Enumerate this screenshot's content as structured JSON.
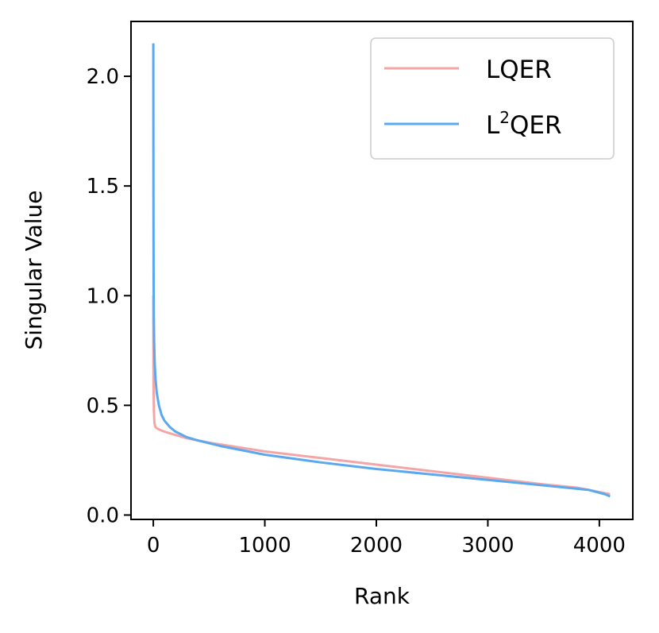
{
  "chart_data": {
    "type": "line",
    "title": "",
    "xlabel": "Rank",
    "ylabel": "Singular Value",
    "xlim": [
      -200,
      4300
    ],
    "ylim": [
      -0.02,
      2.25
    ],
    "xticks": [
      0,
      1000,
      2000,
      3000,
      4000
    ],
    "xtick_labels": [
      "0",
      "1000",
      "2000",
      "3000",
      "4000"
    ],
    "yticks": [
      0.0,
      0.5,
      1.0,
      1.5,
      2.0
    ],
    "ytick_labels": [
      "0.0",
      "0.5",
      "1.0",
      "1.5",
      "2.0"
    ],
    "grid": false,
    "legend_position": "top-right",
    "series": [
      {
        "name": "LQER",
        "legend_base": "LQER",
        "legend_sup": "",
        "legend_tail": "",
        "color": "#f4a6a6",
        "x": [
          0,
          1,
          3,
          5,
          10,
          20,
          50,
          100,
          200,
          300,
          500,
          1000,
          1500,
          2000,
          2500,
          3000,
          3500,
          3800,
          3950,
          4096
        ],
        "y": [
          1.0,
          0.7,
          0.55,
          0.48,
          0.42,
          0.4,
          0.39,
          0.38,
          0.365,
          0.35,
          0.33,
          0.29,
          0.26,
          0.23,
          0.2,
          0.17,
          0.14,
          0.125,
          0.11,
          0.095
        ]
      },
      {
        "name": "L2QER",
        "legend_base": "L",
        "legend_sup": "2",
        "legend_tail": "QER",
        "color": "#5aa9f0",
        "x": [
          0,
          1,
          2,
          3,
          5,
          8,
          12,
          20,
          30,
          50,
          75,
          100,
          150,
          200,
          300,
          400,
          600,
          1000,
          1500,
          2000,
          2500,
          3000,
          3500,
          3900,
          4050,
          4096
        ],
        "y": [
          2.15,
          1.55,
          1.25,
          1.05,
          0.88,
          0.78,
          0.7,
          0.62,
          0.56,
          0.5,
          0.455,
          0.43,
          0.4,
          0.38,
          0.355,
          0.34,
          0.315,
          0.275,
          0.24,
          0.21,
          0.185,
          0.16,
          0.135,
          0.115,
          0.095,
          0.085
        ]
      }
    ]
  }
}
